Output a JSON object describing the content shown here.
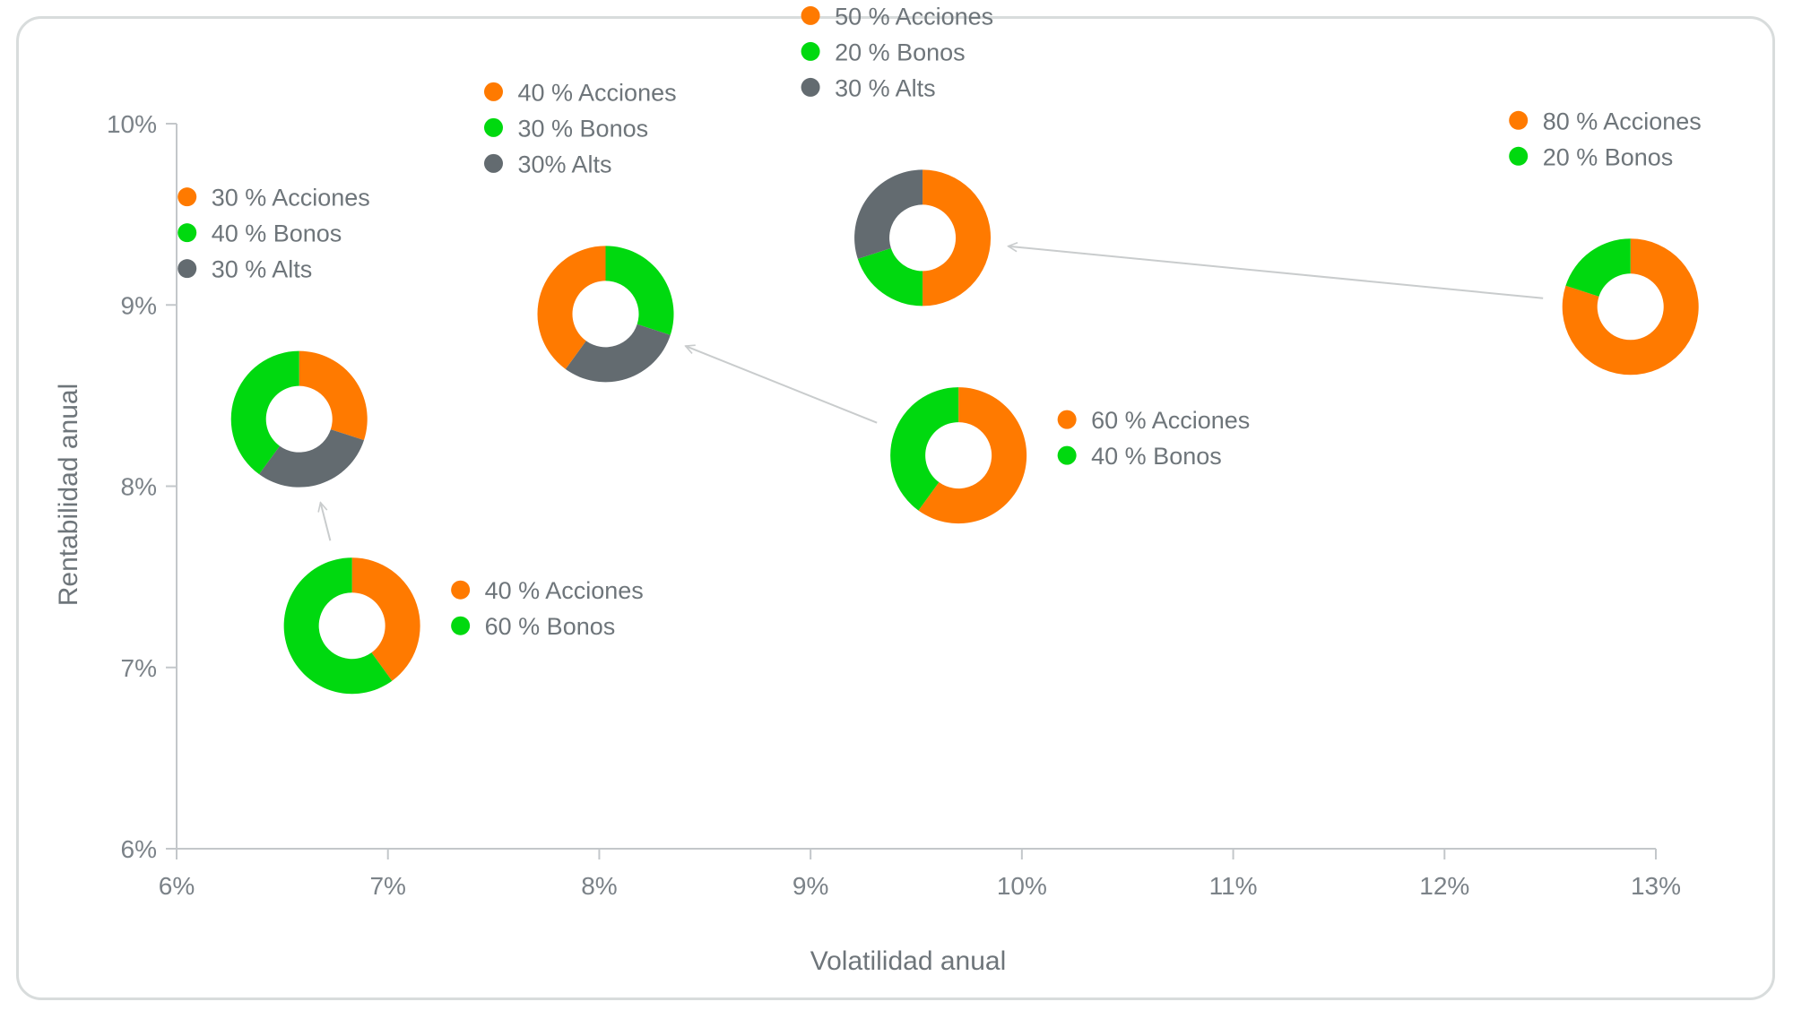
{
  "colors": {
    "acciones": "#ff7a00",
    "bonos": "#00d90f",
    "alts": "#636b70",
    "axis": "#c3c7ca",
    "arrow": "#c9cccd"
  },
  "chart_data": {
    "type": "scatter",
    "title": "",
    "xlabel": "Volatilidad anual",
    "ylabel": "Rentabilidad anual",
    "xlim": [
      6,
      13
    ],
    "ylim": [
      6,
      10
    ],
    "xticks": [
      6,
      7,
      8,
      9,
      10,
      11,
      12,
      13
    ],
    "yticks": [
      6,
      7,
      8,
      9,
      10
    ],
    "xtick_labels": [
      "6%",
      "7%",
      "8%",
      "9%",
      "10%",
      "11%",
      "12%",
      "13%"
    ],
    "ytick_labels": [
      "6%",
      "7%",
      "8%",
      "9%",
      "10%"
    ],
    "points": [
      {
        "id": "p40-60",
        "x": 6.83,
        "y": 7.23,
        "legend_side": "right",
        "slices": [
          {
            "asset": "acciones",
            "pct": 40,
            "label": "40 % Acciones"
          },
          {
            "asset": "bonos",
            "pct": 60,
            "label": "60 % Bonos"
          }
        ]
      },
      {
        "id": "p30-40-30",
        "x": 6.58,
        "y": 8.37,
        "legend_side": "above",
        "slices": [
          {
            "asset": "acciones",
            "pct": 30,
            "label": "30 % Acciones"
          },
          {
            "asset": "alts",
            "pct": 30,
            "label": "30 % Alts"
          },
          {
            "asset": "bonos",
            "pct": 40,
            "label": "40 % Bonos"
          }
        ],
        "legend_order": [
          "acciones",
          "bonos",
          "alts"
        ]
      },
      {
        "id": "p40-30-30",
        "x": 8.03,
        "y": 8.95,
        "legend_side": "above",
        "slices": [
          {
            "asset": "bonos",
            "pct": 30,
            "label": "30 % Bonos"
          },
          {
            "asset": "alts",
            "pct": 30,
            "label": "30% Alts"
          },
          {
            "asset": "acciones",
            "pct": 40,
            "label": "40 % Acciones"
          }
        ],
        "legend_order": [
          "acciones",
          "bonos",
          "alts"
        ]
      },
      {
        "id": "p60-40",
        "x": 9.7,
        "y": 8.17,
        "legend_side": "right",
        "slices": [
          {
            "asset": "acciones",
            "pct": 60,
            "label": "60 % Acciones"
          },
          {
            "asset": "bonos",
            "pct": 40,
            "label": "40 % Bonos"
          }
        ]
      },
      {
        "id": "p50-20-30",
        "x": 9.53,
        "y": 9.37,
        "legend_side": "above",
        "slices": [
          {
            "asset": "acciones",
            "pct": 50,
            "label": "50 % Acciones"
          },
          {
            "asset": "bonos",
            "pct": 20,
            "label": "20 % Bonos"
          },
          {
            "asset": "alts",
            "pct": 30,
            "label": "30 % Alts"
          }
        ],
        "legend_order": [
          "acciones",
          "bonos",
          "alts"
        ]
      },
      {
        "id": "p80-20",
        "x": 12.88,
        "y": 8.99,
        "legend_side": "above",
        "slices": [
          {
            "asset": "acciones",
            "pct": 80,
            "label": "80 % Acciones"
          },
          {
            "asset": "bonos",
            "pct": 20,
            "label": "20 % Bonos"
          }
        ]
      }
    ],
    "arrows": [
      {
        "from": "p40-60",
        "to": "p30-40-30"
      },
      {
        "from": "p60-40",
        "to": "p40-30-30"
      },
      {
        "from": "p80-20",
        "to": "p50-20-30"
      }
    ]
  }
}
